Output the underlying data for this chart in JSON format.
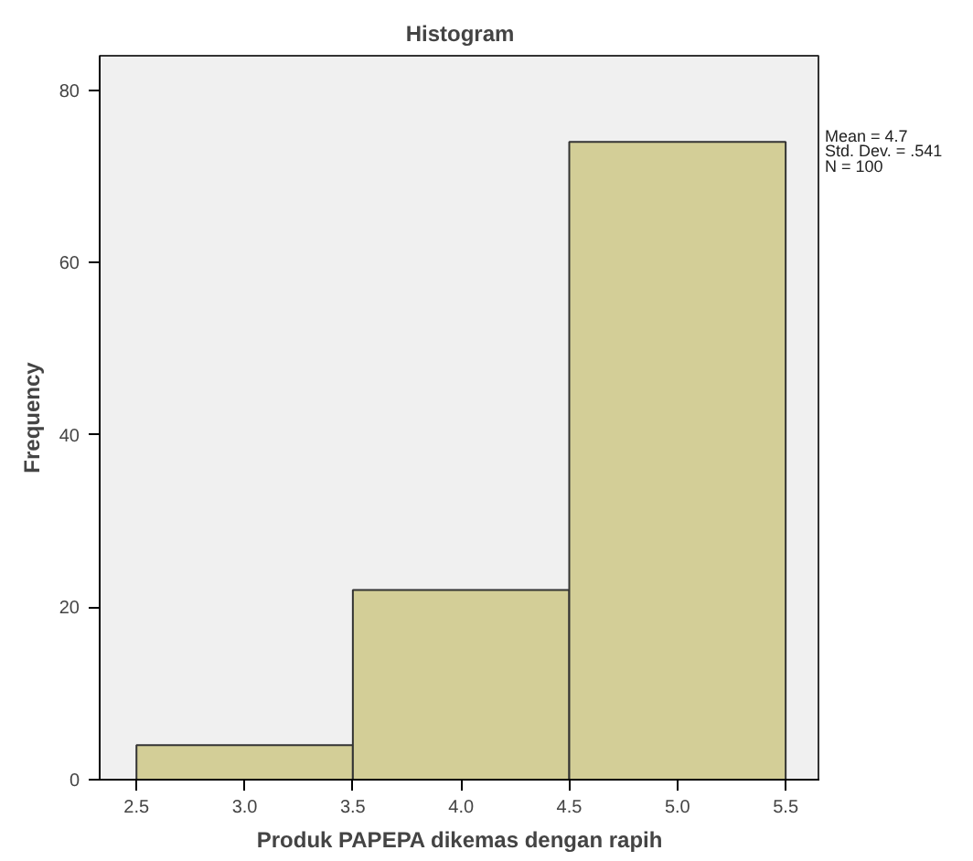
{
  "chart_data": {
    "type": "histogram",
    "title": "Histogram",
    "xlabel": "Produk PAPEPA dikemas dengan rapih",
    "ylabel": "Frequency",
    "bins": [
      2.5,
      3.5,
      4.5,
      5.5
    ],
    "values": [
      4,
      22,
      74
    ],
    "color": "#d3ce97",
    "xlim": [
      2.33,
      5.66
    ],
    "xticks": [
      {
        "value": 2.5,
        "label": "2.5"
      },
      {
        "value": 3,
        "label": "3.0"
      },
      {
        "value": 3.5,
        "label": "3.5"
      },
      {
        "value": 4,
        "label": "4.0"
      },
      {
        "value": 4.5,
        "label": "4.5"
      },
      {
        "value": 5,
        "label": "5.0"
      },
      {
        "value": 5.5,
        "label": "5.5"
      }
    ],
    "ylim": [
      0,
      84
    ],
    "yticks": [
      0,
      20,
      40,
      60,
      80
    ],
    "grid": false,
    "annotations": [
      "Mean = 4.7",
      "Std. Dev. = .541",
      "N = 100"
    ]
  }
}
